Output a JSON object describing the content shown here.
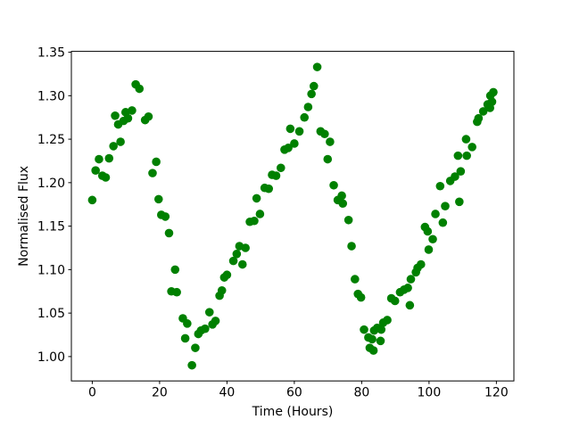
{
  "figure": {
    "background": "#ffffff",
    "frame_color": "#000000"
  },
  "chart_data": {
    "type": "scatter",
    "title": "",
    "xlabel": "Time (Hours)",
    "ylabel": "Normalised Flux",
    "marker": "circle",
    "marker_color": "#008000",
    "marker_radius_px": 4.8,
    "grid": false,
    "legend": null,
    "xlim": [
      -6.2,
      125.2
    ],
    "ylim": [
      0.972,
      1.351
    ],
    "xtick_values": [
      0,
      20,
      40,
      60,
      80,
      100,
      120
    ],
    "xtick_labels": [
      "0",
      "20",
      "40",
      "60",
      "80",
      "100",
      "120"
    ],
    "ytick_values": [
      1.0,
      1.05,
      1.1,
      1.15,
      1.2,
      1.25,
      1.3,
      1.35
    ],
    "ytick_labels": [
      "1.00",
      "1.05",
      "1.10",
      "1.15",
      "1.20",
      "1.25",
      "1.30",
      "1.35"
    ],
    "points": [
      [
        0.0,
        1.18
      ],
      [
        1.0,
        1.214
      ],
      [
        2.0,
        1.227
      ],
      [
        3.0,
        1.208
      ],
      [
        4.0,
        1.206
      ],
      [
        5.0,
        1.228
      ],
      [
        6.3,
        1.242
      ],
      [
        6.8,
        1.277
      ],
      [
        7.7,
        1.267
      ],
      [
        8.4,
        1.247
      ],
      [
        9.3,
        1.271
      ],
      [
        9.9,
        1.281
      ],
      [
        10.6,
        1.274
      ],
      [
        11.8,
        1.283
      ],
      [
        12.9,
        1.313
      ],
      [
        14.0,
        1.308
      ],
      [
        15.7,
        1.272
      ],
      [
        16.7,
        1.276
      ],
      [
        17.9,
        1.211
      ],
      [
        19.0,
        1.224
      ],
      [
        19.7,
        1.181
      ],
      [
        20.5,
        1.163
      ],
      [
        21.7,
        1.161
      ],
      [
        22.8,
        1.142
      ],
      [
        23.5,
        1.075
      ],
      [
        24.6,
        1.1
      ],
      [
        25.1,
        1.074
      ],
      [
        26.9,
        1.044
      ],
      [
        28.2,
        1.038
      ],
      [
        27.6,
        1.021
      ],
      [
        29.6,
        0.99
      ],
      [
        30.6,
        1.01
      ],
      [
        31.5,
        1.026
      ],
      [
        32.3,
        1.03
      ],
      [
        33.5,
        1.032
      ],
      [
        34.8,
        1.051
      ],
      [
        35.7,
        1.037
      ],
      [
        36.6,
        1.041
      ],
      [
        37.8,
        1.07
      ],
      [
        38.5,
        1.076
      ],
      [
        39.2,
        1.091
      ],
      [
        40.0,
        1.094
      ],
      [
        41.9,
        1.11
      ],
      [
        42.9,
        1.118
      ],
      [
        43.7,
        1.127
      ],
      [
        44.6,
        1.106
      ],
      [
        45.5,
        1.125
      ],
      [
        46.8,
        1.155
      ],
      [
        48.1,
        1.156
      ],
      [
        48.8,
        1.182
      ],
      [
        49.8,
        1.164
      ],
      [
        51.2,
        1.194
      ],
      [
        52.4,
        1.193
      ],
      [
        53.4,
        1.209
      ],
      [
        54.6,
        1.208
      ],
      [
        56.0,
        1.217
      ],
      [
        57.1,
        1.238
      ],
      [
        58.2,
        1.24
      ],
      [
        58.8,
        1.262
      ],
      [
        60.0,
        1.245
      ],
      [
        61.5,
        1.259
      ],
      [
        63.0,
        1.275
      ],
      [
        64.1,
        1.287
      ],
      [
        65.1,
        1.302
      ],
      [
        65.8,
        1.311
      ],
      [
        66.8,
        1.333
      ],
      [
        67.8,
        1.259
      ],
      [
        69.0,
        1.256
      ],
      [
        69.9,
        1.227
      ],
      [
        70.6,
        1.247
      ],
      [
        71.7,
        1.197
      ],
      [
        72.9,
        1.18
      ],
      [
        74.1,
        1.185
      ],
      [
        74.4,
        1.176
      ],
      [
        76.1,
        1.157
      ],
      [
        77.0,
        1.127
      ],
      [
        78.0,
        1.089
      ],
      [
        78.9,
        1.072
      ],
      [
        79.8,
        1.068
      ],
      [
        80.7,
        1.031
      ],
      [
        82.0,
        1.022
      ],
      [
        82.4,
        1.01
      ],
      [
        83.1,
        1.02
      ],
      [
        83.5,
        1.007
      ],
      [
        83.7,
        1.03
      ],
      [
        84.6,
        1.033
      ],
      [
        85.6,
        1.018
      ],
      [
        85.8,
        1.031
      ],
      [
        86.4,
        1.039
      ],
      [
        87.6,
        1.042
      ],
      [
        88.8,
        1.067
      ],
      [
        89.9,
        1.064
      ],
      [
        91.4,
        1.074
      ],
      [
        92.6,
        1.077
      ],
      [
        93.7,
        1.079
      ],
      [
        94.3,
        1.059
      ],
      [
        94.6,
        1.089
      ],
      [
        96.1,
        1.097
      ],
      [
        96.6,
        1.102
      ],
      [
        97.6,
        1.106
      ],
      [
        98.8,
        1.149
      ],
      [
        99.6,
        1.144
      ],
      [
        99.9,
        1.123
      ],
      [
        101.1,
        1.135
      ],
      [
        101.9,
        1.164
      ],
      [
        103.3,
        1.196
      ],
      [
        104.1,
        1.154
      ],
      [
        104.8,
        1.173
      ],
      [
        106.3,
        1.202
      ],
      [
        107.7,
        1.207
      ],
      [
        108.6,
        1.231
      ],
      [
        109.0,
        1.178
      ],
      [
        109.4,
        1.213
      ],
      [
        111.0,
        1.25
      ],
      [
        111.2,
        1.231
      ],
      [
        112.8,
        1.241
      ],
      [
        114.3,
        1.27
      ],
      [
        114.7,
        1.274
      ],
      [
        116.1,
        1.282
      ],
      [
        117.4,
        1.29
      ],
      [
        118.1,
        1.286
      ],
      [
        118.2,
        1.3
      ],
      [
        118.7,
        1.293
      ],
      [
        119.1,
        1.304
      ]
    ]
  }
}
